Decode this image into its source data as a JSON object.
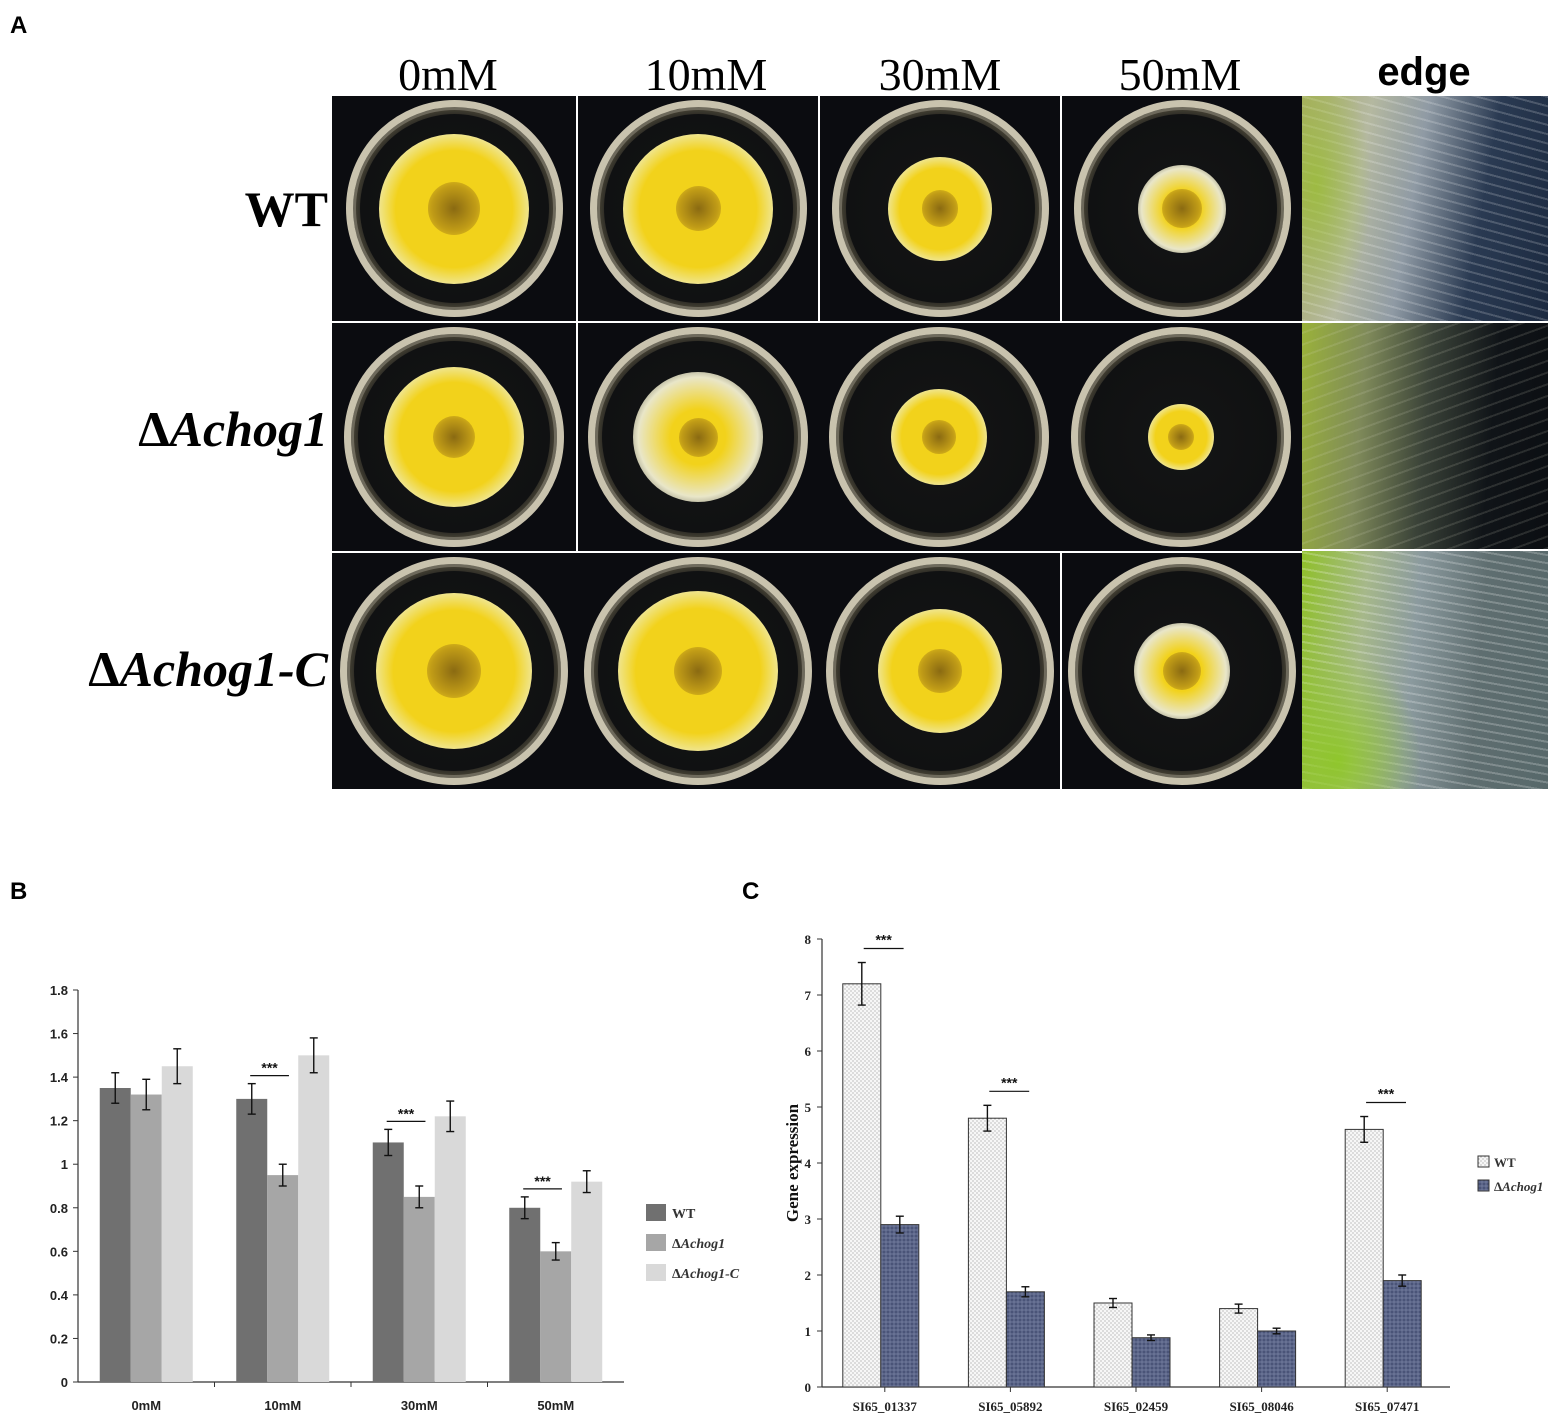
{
  "panel_a": {
    "letter": "A",
    "columns": [
      "0mM",
      "10mM",
      "30mM",
      "50mM",
      "edge"
    ],
    "rows": [
      {
        "delta": "",
        "gene": "WT",
        "italic": false
      },
      {
        "delta": "Δ",
        "gene": "Achog1",
        "italic": true
      },
      {
        "delta": "Δ",
        "gene": "Achog1-C",
        "italic": true
      }
    ],
    "colors": {
      "colony_yellow": "#f2d21b",
      "colony_core": "#8a6a12",
      "colony_pale": "#e9e6c8",
      "edge_green": "#8fbf2a",
      "edge_dark": "#1c2a3a"
    }
  },
  "panel_b": {
    "letter": "B",
    "significance": "***",
    "legend": [
      {
        "name": "WT",
        "delta": "",
        "italic": false
      },
      {
        "name": "Achog1",
        "delta": "Δ",
        "italic": true
      },
      {
        "name": "Achog1-C",
        "delta": "Δ",
        "italic": true
      }
    ]
  },
  "panel_c": {
    "letter": "C",
    "significance": "***",
    "legend": [
      {
        "name": "WT",
        "delta": "",
        "italic": false
      },
      {
        "name": "Achog1",
        "delta": "Δ",
        "italic": true
      }
    ]
  },
  "chart_data": [
    {
      "type": "bar",
      "title": "",
      "xlabel": "",
      "ylabel": "",
      "ylim": [
        0,
        1.8
      ],
      "yticks": [
        "0",
        "0.2",
        "0.4",
        "0.6",
        "0.8",
        "1",
        "1.2",
        "1.4",
        "1.6",
        "1.8"
      ],
      "categories": [
        "0mM",
        "10mM",
        "30mM",
        "50mM"
      ],
      "series": [
        {
          "name": "WT",
          "color": "#707070",
          "values": [
            1.35,
            1.3,
            1.1,
            0.8
          ],
          "errors": [
            0.07,
            0.07,
            0.06,
            0.05
          ]
        },
        {
          "name": "ΔAchog1",
          "color": "#a6a6a6",
          "values": [
            1.32,
            0.95,
            0.85,
            0.6
          ],
          "errors": [
            0.07,
            0.05,
            0.05,
            0.04
          ]
        },
        {
          "name": "ΔAchog1-C",
          "color": "#d9d9d9",
          "values": [
            1.45,
            1.5,
            1.22,
            0.92
          ],
          "errors": [
            0.08,
            0.08,
            0.07,
            0.05
          ]
        }
      ],
      "significance_categories": [
        "10mM",
        "30mM",
        "50mM"
      ],
      "legend_position": "right",
      "grid": false
    },
    {
      "type": "bar",
      "title": "",
      "xlabel": "",
      "ylabel": "Gene expression",
      "ylim": [
        0,
        8
      ],
      "yticks": [
        "0",
        "1",
        "2",
        "3",
        "4",
        "5",
        "6",
        "7",
        "8"
      ],
      "categories": [
        "SI65_01337",
        "SI65_05892",
        "SI65_02459",
        "SI65_08046",
        "SI65_07471"
      ],
      "series": [
        {
          "name": "WT",
          "color": "#f0f0f0",
          "pattern": "dots",
          "values": [
            7.2,
            4.8,
            1.5,
            1.4,
            4.6
          ],
          "errors": [
            0.38,
            0.23,
            0.08,
            0.08,
            0.23
          ]
        },
        {
          "name": "ΔAchog1",
          "color": "#4a5478",
          "pattern": "grid",
          "values": [
            2.9,
            1.7,
            0.88,
            1.0,
            1.9
          ],
          "errors": [
            0.15,
            0.09,
            0.05,
            0.05,
            0.1
          ]
        }
      ],
      "significance_categories": [
        "SI65_01337",
        "SI65_05892",
        "SI65_07471"
      ],
      "legend_position": "right",
      "grid": false
    }
  ]
}
